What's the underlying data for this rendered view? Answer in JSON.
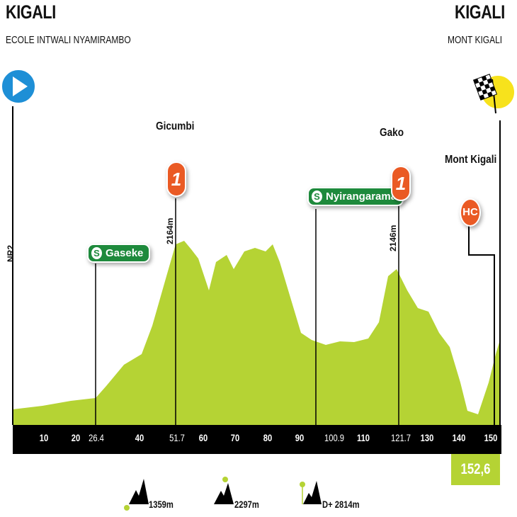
{
  "start": {
    "city": "KIGALI",
    "venue": "ECOLE INTWALI NYAMIRAMBO",
    "road": "NR2"
  },
  "finish": {
    "city": "KIGALI",
    "venue": "MONT KIGALI",
    "distance_label": "152,6 km"
  },
  "sprints": [
    {
      "name": "Gaseke",
      "km": 26.4,
      "icon": "S"
    },
    {
      "name": "Nyirangarama",
      "km": 100.9,
      "icon": "S"
    }
  ],
  "climbs": [
    {
      "name": "Gicumbi",
      "category": "1",
      "km": 51.7,
      "altitude": "2164m"
    },
    {
      "name": "Gako",
      "category": "1",
      "km": 121.7,
      "altitude": "2146m"
    },
    {
      "name": "Mont Kigali",
      "category": "HC"
    }
  ],
  "axis": {
    "ticks": [
      {
        "label": "10",
        "km": 10
      },
      {
        "label": "20",
        "km": 20
      },
      {
        "label": "26.4",
        "km": 26.4,
        "thin": true
      },
      {
        "label": "40",
        "km": 40
      },
      {
        "label": "51.7",
        "km": 51.7,
        "thin": true
      },
      {
        "label": "60",
        "km": 60
      },
      {
        "label": "70",
        "km": 70
      },
      {
        "label": "80",
        "km": 80
      },
      {
        "label": "90",
        "km": 90
      },
      {
        "label": "100.9",
        "km": 100.9,
        "thin": true
      },
      {
        "label": "110",
        "km": 110
      },
      {
        "label": "121.7",
        "km": 121.7,
        "thin": true
      },
      {
        "label": "130",
        "km": 130
      },
      {
        "label": "140",
        "km": 140
      },
      {
        "label": "150",
        "km": 150
      }
    ],
    "total_km": 152.6
  },
  "legend": {
    "min_altitude": "1359m",
    "max_altitude": "2297m",
    "elevation_gain": "D+ 2814m"
  },
  "colors": {
    "profile": "#b5d334",
    "axis_bar": "#000000",
    "sprint": "#1e8a3c",
    "climb": "#ea5a24",
    "start": "#1e8fd6",
    "finish": "#f7e21c"
  }
}
